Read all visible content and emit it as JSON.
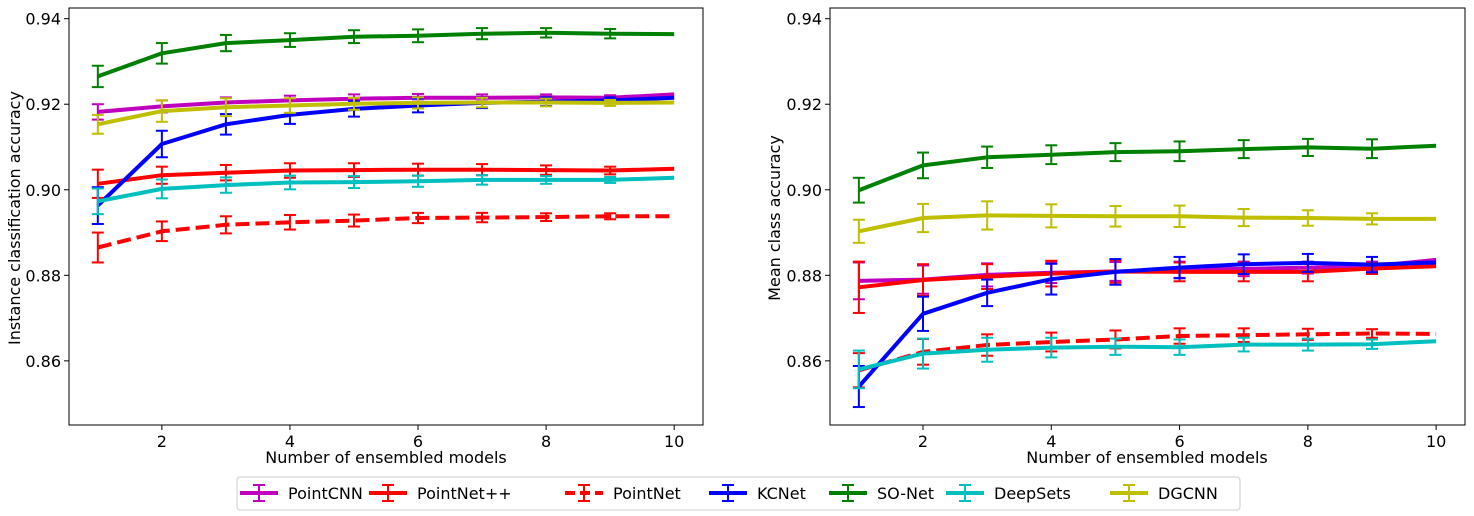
{
  "chart_data": [
    {
      "type": "line",
      "xlabel": "Number of ensembled models",
      "ylabel": "Instance classification accuracy",
      "xlim": [
        0.55,
        10.45
      ],
      "ylim": [
        0.845,
        0.9425
      ],
      "xticks": [
        2,
        4,
        6,
        8,
        10
      ],
      "yticks": [
        0.86,
        0.88,
        0.9,
        0.92,
        0.94
      ],
      "ytick_labels": [
        "0.86",
        "0.88",
        "0.90",
        "0.92",
        "0.94"
      ],
      "x": [
        1,
        2,
        3,
        4,
        5,
        6,
        7,
        8,
        9,
        10
      ],
      "series": [
        {
          "name": "PointCNN",
          "color": "#bf00bf",
          "style": "solid",
          "values": [
            0.9182,
            0.9195,
            0.9204,
            0.9209,
            0.9213,
            0.9215,
            0.9215,
            0.9216,
            0.9215,
            0.9223
          ],
          "errors": [
            0.0018,
            0.0014,
            0.0012,
            0.0011,
            0.001,
            0.0009,
            0.0008,
            0.0007,
            0.0006,
            0.0
          ]
        },
        {
          "name": "PointNet++",
          "color": "#ff0000",
          "style": "solid",
          "values": [
            0.9014,
            0.9034,
            0.904,
            0.9045,
            0.9046,
            0.9047,
            0.9047,
            0.9046,
            0.9045,
            0.9049
          ],
          "errors": [
            0.0033,
            0.002,
            0.0018,
            0.0017,
            0.0016,
            0.0014,
            0.0013,
            0.0011,
            0.0009,
            0.0
          ]
        },
        {
          "name": "PointNet",
          "color": "#ff0000",
          "style": "dashed",
          "values": [
            0.8865,
            0.8903,
            0.8918,
            0.8924,
            0.8928,
            0.8934,
            0.8935,
            0.8936,
            0.8938,
            0.8938
          ],
          "errors": [
            0.0035,
            0.0023,
            0.002,
            0.0017,
            0.0014,
            0.0012,
            0.0011,
            0.0009,
            0.0007,
            0.0
          ]
        },
        {
          "name": "KCNet",
          "color": "#0000ff",
          "style": "solid",
          "values": [
            0.8963,
            0.9107,
            0.9153,
            0.9175,
            0.9189,
            0.9197,
            0.9203,
            0.9206,
            0.9209,
            0.9215
          ],
          "errors": [
            0.0043,
            0.0031,
            0.0024,
            0.0021,
            0.0018,
            0.0016,
            0.0012,
            0.001,
            0.0007,
            0.0
          ]
        },
        {
          "name": "SO-Net",
          "color": "#008000",
          "style": "solid",
          "values": [
            0.9265,
            0.9319,
            0.9343,
            0.935,
            0.9358,
            0.936,
            0.9365,
            0.9367,
            0.9365,
            0.9364
          ],
          "errors": [
            0.0025,
            0.0024,
            0.0019,
            0.0016,
            0.0015,
            0.0015,
            0.0013,
            0.0011,
            0.0011,
            0.0
          ]
        },
        {
          "name": "DeepSets",
          "color": "#00bfbf",
          "style": "solid",
          "values": [
            0.8973,
            0.9002,
            0.9011,
            0.9017,
            0.9018,
            0.902,
            0.9023,
            0.9023,
            0.9023,
            0.9028
          ],
          "errors": [
            0.003,
            0.0022,
            0.0018,
            0.0016,
            0.0014,
            0.0013,
            0.0011,
            0.0009,
            0.0007,
            0.0
          ]
        },
        {
          "name": "DGCNN",
          "color": "#bfbf00",
          "style": "solid",
          "values": [
            0.9153,
            0.9184,
            0.9193,
            0.9197,
            0.9201,
            0.9203,
            0.9204,
            0.9204,
            0.9203,
            0.9204
          ],
          "errors": [
            0.0022,
            0.0025,
            0.0021,
            0.0017,
            0.0014,
            0.0013,
            0.0011,
            0.0009,
            0.0007,
            0.0
          ]
        }
      ]
    },
    {
      "type": "line",
      "xlabel": "Number of ensembled models",
      "ylabel": "Mean class accuracy",
      "xlim": [
        0.55,
        10.45
      ],
      "ylim": [
        0.845,
        0.9425
      ],
      "xticks": [
        2,
        4,
        6,
        8,
        10
      ],
      "yticks": [
        0.86,
        0.88,
        0.9,
        0.92,
        0.94
      ],
      "ytick_labels": [
        "0.86",
        "0.88",
        "0.90",
        "0.92",
        "0.94"
      ],
      "x": [
        1,
        2,
        3,
        4,
        5,
        6,
        7,
        8,
        9,
        10
      ],
      "series": [
        {
          "name": "PointCNN",
          "color": "#bf00bf",
          "style": "solid",
          "values": [
            0.8787,
            0.879,
            0.8801,
            0.8806,
            0.8809,
            0.8813,
            0.8815,
            0.8818,
            0.8821,
            0.8836
          ],
          "errors": [
            0.0043,
            0.0033,
            0.0027,
            0.0024,
            0.0022,
            0.0019,
            0.0017,
            0.0014,
            0.0011,
            0.0
          ]
        },
        {
          "name": "PointNet++",
          "color": "#ff0000",
          "style": "solid",
          "values": [
            0.8772,
            0.8789,
            0.8797,
            0.8804,
            0.8809,
            0.8808,
            0.8808,
            0.8808,
            0.8816,
            0.8821
          ],
          "errors": [
            0.006,
            0.0037,
            0.0029,
            0.003,
            0.0026,
            0.0022,
            0.0022,
            0.0022,
            0.0013,
            0.0
          ]
        },
        {
          "name": "PointNet",
          "color": "#ff0000",
          "style": "dashed",
          "values": [
            0.8578,
            0.8621,
            0.8637,
            0.8644,
            0.865,
            0.8658,
            0.866,
            0.8662,
            0.8664,
            0.8663
          ],
          "errors": [
            0.004,
            0.003,
            0.0025,
            0.0022,
            0.0021,
            0.0018,
            0.0016,
            0.0013,
            0.001,
            0.0
          ]
        },
        {
          "name": "KCNet",
          "color": "#0000ff",
          "style": "solid",
          "values": [
            0.854,
            0.871,
            0.8759,
            0.8791,
            0.8808,
            0.8818,
            0.8826,
            0.8829,
            0.8825,
            0.883
          ],
          "errors": [
            0.0048,
            0.004,
            0.0031,
            0.0036,
            0.003,
            0.0025,
            0.0023,
            0.0021,
            0.0018,
            0.0
          ]
        },
        {
          "name": "SO-Net",
          "color": "#008000",
          "style": "solid",
          "values": [
            0.8999,
            0.9057,
            0.9076,
            0.9082,
            0.9088,
            0.909,
            0.9095,
            0.9099,
            0.9096,
            0.9103
          ],
          "errors": [
            0.0029,
            0.003,
            0.0025,
            0.0022,
            0.0021,
            0.0023,
            0.0021,
            0.002,
            0.0022,
            0.0
          ]
        },
        {
          "name": "DeepSets",
          "color": "#00bfbf",
          "style": "solid",
          "values": [
            0.858,
            0.8617,
            0.8626,
            0.8631,
            0.8633,
            0.8632,
            0.8638,
            0.8638,
            0.8639,
            0.8646
          ],
          "errors": [
            0.0044,
            0.0035,
            0.0028,
            0.0023,
            0.0019,
            0.0018,
            0.0016,
            0.0014,
            0.0011,
            0.0
          ]
        },
        {
          "name": "DGCNN",
          "color": "#bfbf00",
          "style": "solid",
          "values": [
            0.8903,
            0.8934,
            0.894,
            0.8939,
            0.8938,
            0.8938,
            0.8935,
            0.8934,
            0.8932,
            0.8932
          ],
          "errors": [
            0.0027,
            0.0033,
            0.0033,
            0.0027,
            0.0024,
            0.0025,
            0.002,
            0.0018,
            0.0013,
            0.0
          ]
        }
      ]
    }
  ],
  "legend": {
    "placement": "bottom-center",
    "items": [
      {
        "label": "PointCNN",
        "color": "#bf00bf",
        "style": "solid"
      },
      {
        "label": "PointNet++",
        "color": "#ff0000",
        "style": "solid"
      },
      {
        "label": "PointNet",
        "color": "#ff0000",
        "style": "dashed"
      },
      {
        "label": "KCNet",
        "color": "#0000ff",
        "style": "solid"
      },
      {
        "label": "SO-Net",
        "color": "#008000",
        "style": "solid"
      },
      {
        "label": "DeepSets",
        "color": "#00bfbf",
        "style": "solid"
      },
      {
        "label": "DGCNN",
        "color": "#bfbf00",
        "style": "solid"
      }
    ]
  }
}
